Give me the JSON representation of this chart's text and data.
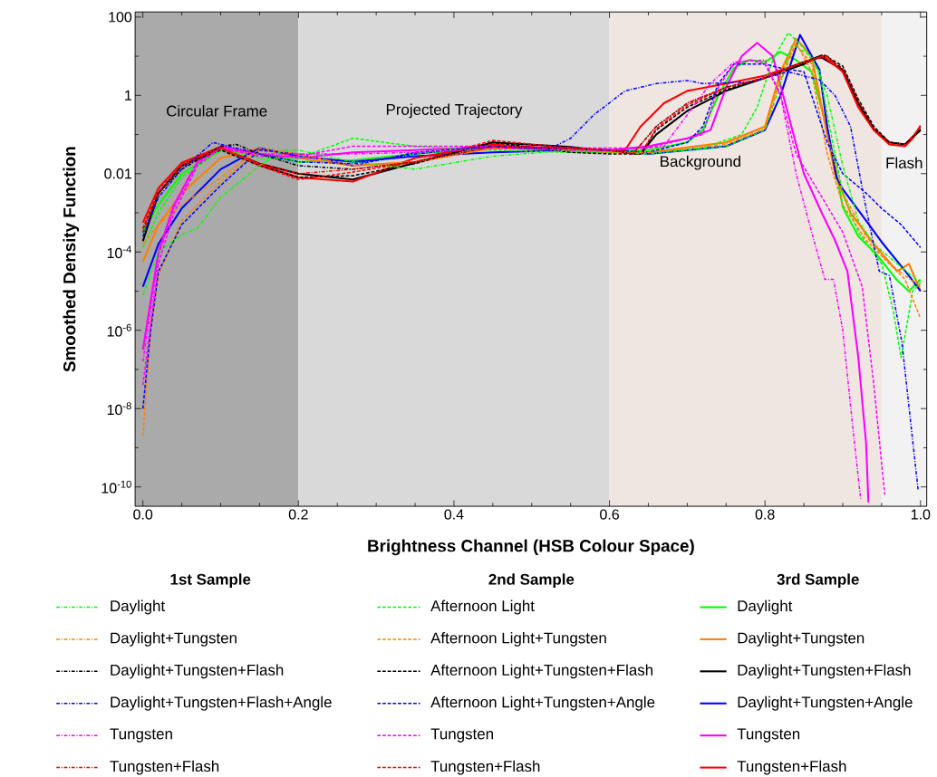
{
  "chart_data": {
    "type": "line",
    "xlabel": "Brightness Channel (HSB Colour Space)",
    "ylabel": "Smoothed Density Function",
    "log": "y",
    "xlim": [
      -0.01,
      1.008
    ],
    "ylim": [
      3.2e-11,
      135
    ],
    "xticks": [
      {
        "value": 0,
        "label": "0.0"
      },
      {
        "value": 0.05,
        "label": null
      },
      {
        "value": 0.1,
        "label": null
      },
      {
        "value": 0.15,
        "label": null
      },
      {
        "value": 0.2,
        "label": "0.2"
      },
      {
        "value": 0.25,
        "label": null
      },
      {
        "value": 0.3,
        "label": null
      },
      {
        "value": 0.35,
        "label": null
      },
      {
        "value": 0.4,
        "label": "0.4"
      },
      {
        "value": 0.45,
        "label": null
      },
      {
        "value": 0.5,
        "label": null
      },
      {
        "value": 0.55,
        "label": null
      },
      {
        "value": 0.6,
        "label": "0.6"
      },
      {
        "value": 0.65,
        "label": null
      },
      {
        "value": 0.7,
        "label": null
      },
      {
        "value": 0.75,
        "label": null
      },
      {
        "value": 0.8,
        "label": "0.8"
      },
      {
        "value": 0.85,
        "label": null
      },
      {
        "value": 0.9,
        "label": null
      },
      {
        "value": 0.95,
        "label": null
      },
      {
        "value": 1,
        "label": "1.0"
      }
    ],
    "yticks": [
      {
        "value": 1e-10,
        "label": "10$^{-10}$"
      },
      {
        "value": 1e-09,
        "label": null
      },
      {
        "value": 1e-08,
        "label": "10$^{-8}$"
      },
      {
        "value": 1e-07,
        "label": null
      },
      {
        "value": 1e-06,
        "label": "10$^{-6}$"
      },
      {
        "value": 1e-05,
        "label": null
      },
      {
        "value": 0.0001,
        "label": "10$^{-4}$"
      },
      {
        "value": 0.001,
        "label": null
      },
      {
        "value": 0.01,
        "label": "0.01"
      },
      {
        "value": 0.1,
        "label": null
      },
      1,
      {
        "value": 10,
        "label": null
      },
      100
    ],
    "bands": [
      {
        "axis": "x",
        "from": -0.01,
        "to": 0.2,
        "label": "Circular Frame",
        "color": "#aaaaaa"
      },
      {
        "axis": "x",
        "from": 0.2,
        "to": 0.6,
        "label": "Projected Trajectory",
        "color": "#d9d9d9"
      },
      {
        "axis": "x",
        "from": 0.6,
        "to": 0.95,
        "label": "Background",
        "color": "#efe6e1"
      },
      {
        "axis": "x",
        "from": 0.95,
        "to": 1.008,
        "label": "Flash",
        "color": "#f2f2f2"
      }
    ],
    "legend": "bottom",
    "annotations": [
      "1st Sample",
      "2nd Sample",
      "3rd Sample"
    ],
    "series": [
      {
        "name": "Daylight",
        "color": "#00ff00",
        "line_style": "dashdot",
        "x": [
          0,
          0.02,
          0.05,
          0.07,
          0.1,
          0.15,
          0.18,
          0.2,
          0.27,
          0.35,
          0.45,
          0.55,
          0.6,
          0.65,
          0.75,
          0.8,
          0.82,
          0.835,
          0.86,
          0.88,
          0.9,
          0.92,
          0.94,
          0.97,
          1.0
        ],
        "values": [
          8e-06,
          0.0001,
          0.00028,
          0.0004,
          0.0025,
          0.016,
          0.04,
          0.04,
          0.02,
          0.013,
          0.028,
          0.04,
          0.035,
          0.032,
          0.05,
          0.13,
          2,
          20,
          10,
          1,
          0.016,
          0.00063,
          0.00016,
          5e-05,
          1.6e-05
        ]
      },
      {
        "name": "Daylight+Tungsten",
        "color": "#ff8000",
        "line_style": "dashdot",
        "x": [
          0,
          0.02,
          0.05,
          0.1,
          0.15,
          0.2,
          0.27,
          0.35,
          0.45,
          0.55,
          0.6,
          0.65,
          0.75,
          0.8,
          0.82,
          0.84,
          0.86,
          0.88,
          0.9,
          0.93,
          0.96,
          0.98,
          1.0
        ],
        "values": [
          0.00016,
          0.0005,
          0.0016,
          0.008,
          0.045,
          0.032,
          0.016,
          0.02,
          0.045,
          0.04,
          0.035,
          0.035,
          0.056,
          0.14,
          2.5,
          20,
          6.3,
          0.1,
          0.0032,
          0.00025,
          5e-05,
          2.5e-05,
          1.3e-05
        ]
      },
      {
        "name": "Daylight+Tungsten+Flash",
        "color": "#000000",
        "line_style": "dashdot",
        "x": [
          0,
          0.02,
          0.05,
          0.1,
          0.12,
          0.15,
          0.2,
          0.27,
          0.35,
          0.45,
          0.55,
          0.6,
          0.63,
          0.66,
          0.7,
          0.75,
          0.8,
          0.85,
          0.88,
          0.9,
          0.92,
          0.94,
          0.96,
          0.98,
          1.0
        ],
        "values": [
          0.00032,
          0.0032,
          0.013,
          0.05,
          0.056,
          0.032,
          0.016,
          0.013,
          0.02,
          0.05,
          0.045,
          0.04,
          0.032,
          0.16,
          0.63,
          1.6,
          2.8,
          7.1,
          10,
          4.5,
          0.63,
          0.14,
          0.063,
          0.056,
          0.13
        ]
      },
      {
        "name": "Daylight+Tungsten+Flash+Angle",
        "color": "#0000ff",
        "line_style": "dashdot",
        "x": [
          0,
          0.02,
          0.05,
          0.09,
          0.15,
          0.2,
          0.27,
          0.35,
          0.45,
          0.52,
          0.55,
          0.58,
          0.62,
          0.66,
          0.7,
          0.72,
          0.78,
          0.83,
          0.87,
          0.89,
          0.91,
          0.93,
          0.947,
          0.96,
          0.976,
          0.997
        ],
        "values": [
          0.00025,
          0.0025,
          0.013,
          0.063,
          0.032,
          0.02,
          0.018,
          0.032,
          0.05,
          0.04,
          0.08,
          0.32,
          1.3,
          2,
          2.4,
          2,
          2.2,
          4,
          2.5,
          1,
          0.16,
          0.0013,
          3.2e-05,
          2.5e-05,
          5e-07,
          8e-11
        ]
      },
      {
        "name": "Tungsten",
        "color": "#ff00ff",
        "line_style": "dashdot",
        "x": [
          0,
          0.02,
          0.04,
          0.07,
          0.1,
          0.15,
          0.2,
          0.27,
          0.35,
          0.45,
          0.55,
          0.6,
          0.67,
          0.7,
          0.73,
          0.76,
          0.8,
          0.82,
          0.84,
          0.86,
          0.877,
          0.888,
          0.9,
          0.913,
          0.923
        ],
        "values": [
          1.6e-07,
          8e-05,
          0.0013,
          0.018,
          0.045,
          0.032,
          0.032,
          0.032,
          0.035,
          0.045,
          0.04,
          0.04,
          0.05,
          0.32,
          2,
          7.1,
          8,
          1,
          0.01,
          0.00032,
          2e-05,
          2e-05,
          1e-06,
          3.2e-09,
          5e-11
        ]
      },
      {
        "name": "Tungsten+Flash",
        "color": "#ff0000",
        "line_style": "dashdot",
        "x": [
          0,
          0.02,
          0.05,
          0.1,
          0.15,
          0.2,
          0.27,
          0.35,
          0.45,
          0.55,
          0.6,
          0.63,
          0.66,
          0.7,
          0.75,
          0.8,
          0.85,
          0.88,
          0.9,
          0.92,
          0.94,
          0.96,
          0.98,
          1.0
        ],
        "values": [
          0.00032,
          0.0032,
          0.016,
          0.045,
          0.018,
          0.01,
          0.013,
          0.02,
          0.05,
          0.045,
          0.04,
          0.032,
          0.16,
          0.63,
          1.6,
          2.8,
          7.1,
          10,
          4,
          0.5,
          0.13,
          0.056,
          0.05,
          0.16
        ]
      },
      {
        "name": "Afternoon Light",
        "color": "#00ff00",
        "line_style": "dashed",
        "x": [
          0,
          0.02,
          0.05,
          0.1,
          0.15,
          0.2,
          0.27,
          0.35,
          0.45,
          0.55,
          0.6,
          0.65,
          0.72,
          0.77,
          0.79,
          0.81,
          0.83,
          0.85,
          0.87,
          0.885,
          0.9,
          0.92,
          0.95,
          0.965,
          0.975,
          0.99,
          1.0
        ],
        "values": [
          0.00013,
          0.001,
          0.008,
          0.04,
          0.025,
          0.025,
          0.08,
          0.05,
          0.04,
          0.035,
          0.035,
          0.035,
          0.045,
          0.1,
          0.5,
          8,
          40,
          16,
          4,
          0.1,
          0.0032,
          0.00032,
          5e-05,
          3.2e-06,
          2e-07,
          1e-05,
          1.6e-05
        ]
      },
      {
        "name": "Afternoon Light+Tungsten",
        "color": "#ff8000",
        "line_style": "dashed",
        "x": [
          0,
          0.01,
          0.02,
          0.05,
          0.1,
          0.15,
          0.2,
          0.27,
          0.35,
          0.45,
          0.55,
          0.6,
          0.65,
          0.75,
          0.8,
          0.82,
          0.84,
          0.86,
          0.88,
          0.9,
          0.93,
          0.96,
          0.98,
          1.0
        ],
        "values": [
          2e-09,
          1e-06,
          2.5e-05,
          0.00063,
          0.0063,
          0.04,
          0.032,
          0.016,
          0.02,
          0.045,
          0.04,
          0.035,
          0.035,
          0.063,
          0.16,
          3.2,
          22,
          4,
          0.032,
          0.0016,
          0.0002,
          5e-05,
          2e-05,
          2e-06
        ]
      },
      {
        "name": "Afternoon Light+Tungsten+Flash",
        "color": "#000000",
        "line_style": "dashed",
        "x": [
          0,
          0.02,
          0.05,
          0.1,
          0.15,
          0.2,
          0.27,
          0.35,
          0.45,
          0.55,
          0.6,
          0.64,
          0.66,
          0.7,
          0.75,
          0.8,
          0.85,
          0.875,
          0.9,
          0.92,
          0.94,
          0.96,
          0.98,
          1.0
        ],
        "values": [
          0.0004,
          0.0032,
          0.016,
          0.04,
          0.016,
          0.008,
          0.0089,
          0.018,
          0.063,
          0.035,
          0.032,
          0.032,
          0.13,
          0.5,
          1.4,
          2.8,
          7.1,
          11,
          5.6,
          0.8,
          0.16,
          0.063,
          0.056,
          0.14
        ]
      },
      {
        "name": "Afternoon Light+Tungsten+Angle",
        "color": "#0000ff",
        "line_style": "dashed",
        "x": [
          0,
          0.01,
          0.02,
          0.05,
          0.1,
          0.15,
          0.2,
          0.27,
          0.35,
          0.45,
          0.55,
          0.6,
          0.65,
          0.7,
          0.72,
          0.74,
          0.76,
          0.8,
          0.82,
          0.85,
          0.86,
          0.87,
          0.88,
          0.9,
          0.93,
          0.95,
          0.975,
          1.0
        ],
        "values": [
          1e-08,
          1e-06,
          3.2e-05,
          0.0005,
          0.005,
          0.04,
          0.032,
          0.016,
          0.035,
          0.05,
          0.04,
          0.04,
          0.035,
          0.063,
          0.16,
          2,
          6.3,
          6.3,
          5,
          4,
          1,
          0.25,
          0.063,
          0.01,
          0.0032,
          0.0013,
          0.0005,
          0.00013
        ]
      },
      {
        "name": "Tungsten",
        "color": "#ff00ff",
        "line_style": "dashed",
        "x": [
          0,
          0.02,
          0.04,
          0.07,
          0.1,
          0.15,
          0.2,
          0.27,
          0.35,
          0.45,
          0.55,
          0.6,
          0.65,
          0.72,
          0.74,
          0.76,
          0.78,
          0.8,
          0.82,
          0.84,
          0.87,
          0.9,
          0.925,
          0.94,
          0.954
        ],
        "values": [
          4e-08,
          5e-05,
          0.001,
          0.016,
          0.045,
          0.028,
          0.028,
          0.05,
          0.05,
          0.05,
          0.045,
          0.045,
          0.045,
          0.1,
          1.6,
          6.3,
          8,
          6.3,
          1,
          0.032,
          0.0032,
          0.00032,
          1.3e-05,
          4e-08,
          6.3e-11
        ]
      },
      {
        "name": "Tungsten+Flash",
        "color": "#ff0000",
        "line_style": "dashed",
        "x": [
          0,
          0.02,
          0.05,
          0.1,
          0.15,
          0.2,
          0.27,
          0.35,
          0.45,
          0.55,
          0.6,
          0.64,
          0.66,
          0.7,
          0.75,
          0.8,
          0.85,
          0.875,
          0.9,
          0.92,
          0.94,
          0.96,
          0.98,
          1.0
        ],
        "values": [
          0.0004,
          0.004,
          0.018,
          0.045,
          0.016,
          0.0071,
          0.011,
          0.02,
          0.071,
          0.045,
          0.04,
          0.032,
          0.14,
          0.56,
          1.6,
          2.8,
          7.1,
          10,
          5,
          0.71,
          0.14,
          0.063,
          0.056,
          0.15
        ]
      },
      {
        "name": "Daylight",
        "color": "#00ff00",
        "line_style": "solid",
        "x": [
          0,
          0.02,
          0.05,
          0.1,
          0.15,
          0.2,
          0.27,
          0.35,
          0.45,
          0.55,
          0.6,
          0.65,
          0.7,
          0.72,
          0.74,
          0.76,
          0.78,
          0.8,
          0.82,
          0.84,
          0.86,
          0.875,
          0.888,
          0.9,
          0.92,
          0.943,
          0.969,
          0.985,
          1.0
        ],
        "values": [
          0.00032,
          0.0016,
          0.01,
          0.04,
          0.032,
          0.02,
          0.022,
          0.032,
          0.045,
          0.045,
          0.04,
          0.04,
          0.063,
          0.13,
          1,
          5,
          8,
          7.1,
          13,
          8,
          4,
          0.32,
          0.028,
          0.0014,
          0.00025,
          8.9e-05,
          2e-05,
          1e-05,
          2e-05
        ]
      },
      {
        "name": "Daylight+Tungsten",
        "color": "#ff8000",
        "line_style": "solid",
        "x": [
          0,
          0.02,
          0.05,
          0.1,
          0.15,
          0.2,
          0.27,
          0.35,
          0.45,
          0.55,
          0.6,
          0.65,
          0.75,
          0.8,
          0.82,
          0.84,
          0.86,
          0.875,
          0.89,
          0.91,
          0.94,
          0.97,
          0.985,
          1.0
        ],
        "values": [
          5.6e-05,
          0.0005,
          0.0032,
          0.025,
          0.045,
          0.025,
          0.016,
          0.02,
          0.045,
          0.04,
          0.035,
          0.035,
          0.063,
          0.16,
          4,
          28,
          10,
          0.32,
          0.01,
          0.001,
          0.00016,
          3.2e-05,
          5e-05,
          1e-05
        ]
      },
      {
        "name": "Daylight+Tungsten+Flash",
        "color": "#000000",
        "line_style": "solid",
        "x": [
          0,
          0.02,
          0.05,
          0.1,
          0.15,
          0.2,
          0.27,
          0.35,
          0.45,
          0.55,
          0.6,
          0.64,
          0.66,
          0.7,
          0.75,
          0.8,
          0.85,
          0.87,
          0.9,
          0.92,
          0.94,
          0.96,
          0.98,
          1.0
        ],
        "values": [
          0.00019,
          0.0032,
          0.016,
          0.045,
          0.018,
          0.01,
          0.0071,
          0.019,
          0.063,
          0.048,
          0.037,
          0.032,
          0.1,
          0.4,
          1.3,
          2.8,
          6.3,
          10,
          4.5,
          0.63,
          0.14,
          0.063,
          0.056,
          0.13
        ]
      },
      {
        "name": "Daylight+Tungsten+Angle",
        "color": "#0000ff",
        "line_style": "solid",
        "x": [
          0,
          0.02,
          0.05,
          0.1,
          0.15,
          0.2,
          0.27,
          0.35,
          0.45,
          0.55,
          0.6,
          0.65,
          0.75,
          0.8,
          0.82,
          0.845,
          0.87,
          0.88,
          0.892,
          0.9,
          0.93,
          0.95,
          0.983,
          1.0
        ],
        "values": [
          1.3e-05,
          0.00016,
          0.0013,
          0.013,
          0.045,
          0.028,
          0.02,
          0.028,
          0.035,
          0.04,
          0.04,
          0.032,
          0.05,
          0.13,
          1,
          35,
          4.5,
          0.16,
          0.008,
          0.004,
          0.00063,
          0.00018,
          2.8e-05,
          1e-05
        ]
      },
      {
        "name": "Tungsten",
        "color": "#ff00ff",
        "line_style": "solid",
        "x": [
          0,
          0.02,
          0.04,
          0.07,
          0.1,
          0.15,
          0.2,
          0.27,
          0.35,
          0.45,
          0.55,
          0.6,
          0.65,
          0.7,
          0.73,
          0.75,
          0.77,
          0.79,
          0.81,
          0.83,
          0.85,
          0.873,
          0.89,
          0.906,
          0.92,
          0.93,
          0.933
        ],
        "values": [
          3.2e-07,
          0.0001,
          0.0016,
          0.02,
          0.05,
          0.032,
          0.025,
          0.035,
          0.04,
          0.05,
          0.045,
          0.04,
          0.05,
          0.08,
          0.13,
          1.6,
          10,
          22,
          10,
          0.32,
          0.01,
          0.001,
          0.0002,
          3.2e-05,
          2e-07,
          1.3e-09,
          4e-11
        ]
      },
      {
        "name": "Tungsten+Flash",
        "color": "#ff0000",
        "line_style": "solid",
        "x": [
          0,
          0.02,
          0.05,
          0.1,
          0.15,
          0.2,
          0.27,
          0.35,
          0.45,
          0.55,
          0.6,
          0.62,
          0.64,
          0.67,
          0.7,
          0.75,
          0.8,
          0.85,
          0.875,
          0.9,
          0.92,
          0.94,
          0.96,
          0.98,
          0.99,
          1.0
        ],
        "values": [
          0.00056,
          0.0043,
          0.019,
          0.048,
          0.017,
          0.008,
          0.0063,
          0.025,
          0.056,
          0.04,
          0.035,
          0.04,
          0.16,
          0.63,
          1.3,
          2,
          3.2,
          7.1,
          10,
          4,
          0.5,
          0.13,
          0.056,
          0.05,
          0.08,
          0.17
        ]
      }
    ]
  }
}
